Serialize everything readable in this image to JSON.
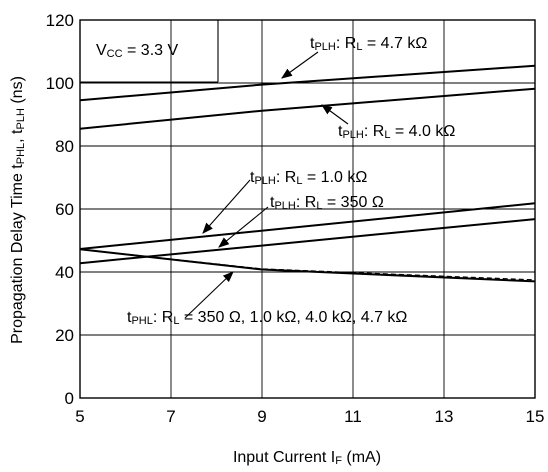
{
  "chart_data": {
    "type": "line",
    "xlabel": "Input Current  IF (mA)",
    "ylabel": "Propagation Delay Time  tPHL, tPLH (ns)",
    "xlim": [
      5,
      15
    ],
    "ylim": [
      0,
      120
    ],
    "x_ticks": [
      "5",
      "7",
      "9",
      "11",
      "13",
      "15"
    ],
    "y_ticks": [
      "0",
      "20",
      "40",
      "60",
      "80",
      "100",
      "120"
    ],
    "grid": true,
    "condition_label": "VCC = 3.3 V",
    "series": [
      {
        "name": "tPLH: RL = 4.7 kΩ",
        "x": [
          5,
          9,
          15
        ],
        "y": [
          94.5,
          99.5,
          105.5
        ],
        "style": "solid"
      },
      {
        "name": "tPLH: RL = 4.0 kΩ",
        "x": [
          5,
          9,
          15
        ],
        "y": [
          85.5,
          91.2,
          98.2
        ],
        "style": "solid"
      },
      {
        "name": "tPLH: RL = 1.0 kΩ",
        "x": [
          5,
          15
        ],
        "y": [
          47.3,
          61.8
        ],
        "style": "solid"
      },
      {
        "name": "tPLH: RL = 350 Ω",
        "x": [
          5,
          15
        ],
        "y": [
          42.8,
          56.8
        ],
        "style": "solid"
      },
      {
        "name": "tPHL: RL = 350 Ω, 1.0 kΩ, 4.0 kΩ, 4.7 kΩ",
        "x": [
          5,
          9,
          15
        ],
        "y": [
          47.2,
          40.8,
          37.0
        ],
        "style": "solid"
      },
      {
        "name": "",
        "x": [
          5,
          9,
          15
        ],
        "y": [
          47.2,
          41.0,
          37.5
        ],
        "style": "dashed"
      }
    ],
    "annotations": {
      "vcc": {
        "main": "V",
        "sub": "CC",
        "rest": " = 3.3 V"
      },
      "a47": {
        "t": "t",
        "sub": "PLH",
        "mid": ": R",
        "sub2": "L",
        "rest": " = 4.7 kΩ"
      },
      "a40": {
        "t": "t",
        "sub": "PLH",
        "mid": ": R",
        "sub2": "L",
        "rest": " = 4.0 kΩ"
      },
      "a10": {
        "t": "t",
        "sub": "PLH",
        "mid": ": R",
        "sub2": "L",
        "rest": " = 1.0 kΩ"
      },
      "a350": {
        "t": "t",
        "sub": "PLH",
        "mid": ": R",
        "sub2": "L",
        "rest": " = 350 Ω"
      },
      "aphl": {
        "t": "t",
        "sub": "PHL",
        "mid": ": R",
        "sub2": "L",
        "rest": " = 350 Ω, 1.0 kΩ, 4.0 kΩ, 4.7 kΩ"
      }
    },
    "axis_title_parts": {
      "y": {
        "a": "Propagation Delay Time  t",
        "sub1": "PHL",
        "b": ", t",
        "sub2": "PLH",
        "c": " (ns)"
      },
      "x": {
        "a": "Input Current  I",
        "sub": "F",
        "b": " (mA)"
      }
    }
  }
}
